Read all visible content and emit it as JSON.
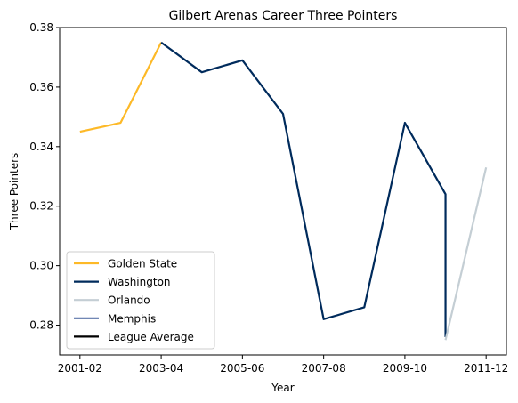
{
  "chart_data": {
    "type": "line",
    "title": "Gilbert Arenas Career Three Pointers",
    "xlabel": "Year",
    "ylabel": "Three Pointers",
    "x_ticks": [
      {
        "x": 0,
        "label": "2001-02"
      },
      {
        "x": 2,
        "label": "2003-04"
      },
      {
        "x": 4,
        "label": "2005-06"
      },
      {
        "x": 6,
        "label": "2007-08"
      },
      {
        "x": 8,
        "label": "2009-10"
      },
      {
        "x": 10,
        "label": "2011-12"
      }
    ],
    "y_ticks": [
      0.28,
      0.3,
      0.32,
      0.34,
      0.36,
      0.38
    ],
    "xlim": [
      -0.5,
      10.5
    ],
    "ylim": [
      0.27,
      0.38
    ],
    "legend_position": "lower-left",
    "series": [
      {
        "name": "Golden State",
        "color": "#FDB927",
        "points": [
          [
            0,
            0.345
          ],
          [
            1,
            0.348
          ],
          [
            2,
            0.375
          ]
        ]
      },
      {
        "name": "Washington",
        "color": "#002B5C",
        "points": [
          [
            2,
            0.375
          ],
          [
            3,
            0.365
          ],
          [
            4,
            0.369
          ],
          [
            5,
            0.351
          ],
          [
            6,
            0.282
          ],
          [
            7,
            0.286
          ],
          [
            8,
            0.348
          ],
          [
            9,
            0.324
          ],
          [
            9,
            0.276
          ]
        ]
      },
      {
        "name": "Orlando",
        "color": "#C4CED4",
        "points": [
          [
            9,
            0.275
          ],
          [
            10,
            0.333
          ]
        ]
      },
      {
        "name": "Memphis",
        "color": "#5D76A9",
        "points": []
      },
      {
        "name": "League Average",
        "color": "#000000",
        "points": []
      }
    ]
  }
}
